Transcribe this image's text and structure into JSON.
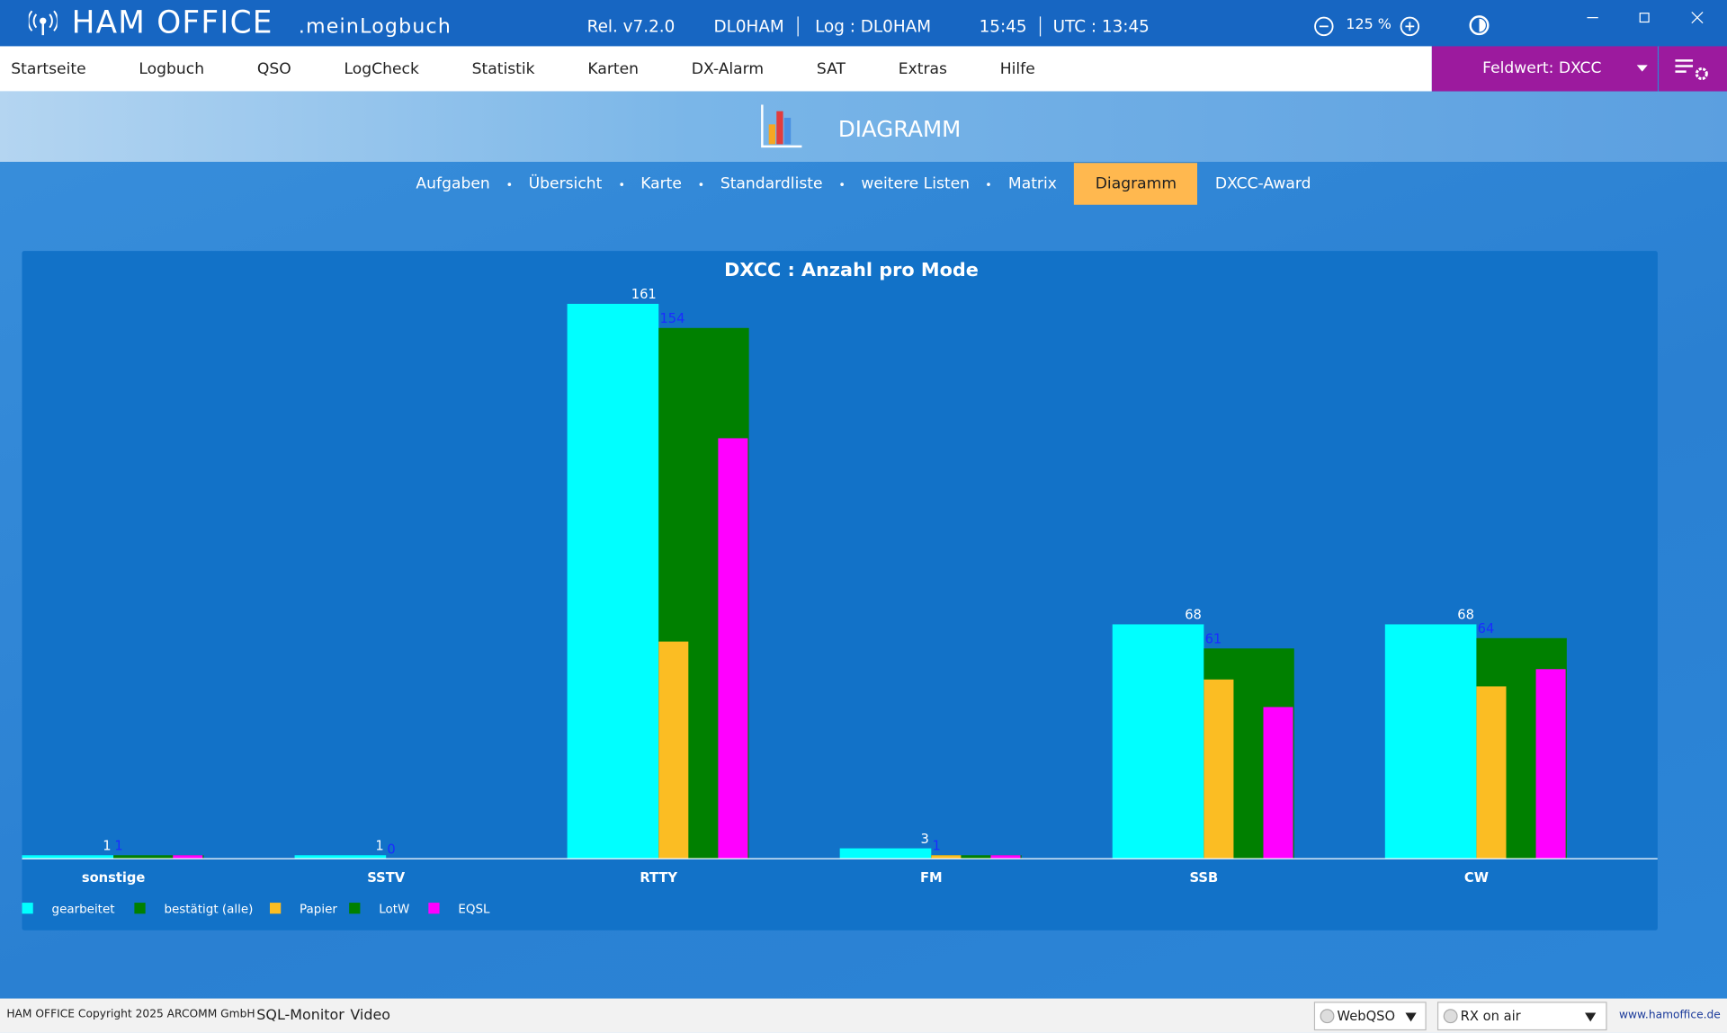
{
  "titlebar": {
    "app": "HAM OFFICE",
    "subtitle": ".meinLogbuch",
    "release": "Rel. v7.2.0",
    "station": "DL0HAM",
    "log": "Log : DL0HAM",
    "time": "15:45",
    "utc": "UTC : 13:45",
    "zoom": "125 %"
  },
  "menu": {
    "items": [
      "Startseite",
      "Logbuch",
      "QSO",
      "LogCheck",
      "Statistik",
      "Karten",
      "DX-Alarm",
      "SAT",
      "Extras",
      "Hilfe"
    ],
    "field": "Feldwert:  DXCC"
  },
  "header": {
    "title": "DIAGRAMM"
  },
  "tabs": {
    "items": [
      "Aufgaben",
      "Übersicht",
      "Karte",
      "Standardliste",
      "weitere Listen",
      "Matrix",
      "Diagramm",
      "DXCC-Award"
    ],
    "active": 6
  },
  "chart_data": {
    "type": "bar",
    "title": "DXCC : Anzahl pro Mode",
    "categories": [
      "sonstige",
      "SSTV",
      "RTTY",
      "FM",
      "SSB",
      "CW"
    ],
    "series": [
      {
        "name": "gearbeitet",
        "color": "#00ffff",
        "values": [
          1,
          1,
          161,
          3,
          68,
          68
        ],
        "label_color": "#ffffff"
      },
      {
        "name": "bestätigt (alle)",
        "color": "#008000",
        "values": [
          1,
          0,
          154,
          1,
          61,
          64
        ],
        "label_color": "#1a2cff"
      },
      {
        "name": "Papier",
        "color": "#fbbd23",
        "values": [
          0,
          0,
          63,
          1,
          52,
          50
        ]
      },
      {
        "name": "LotW",
        "color": "#008000",
        "values": [
          null,
          null,
          null,
          null,
          null,
          null
        ]
      },
      {
        "name": "EQSL",
        "color": "#ff00ff",
        "values": [
          1,
          0,
          122,
          1,
          44,
          55
        ]
      }
    ]
  },
  "footer": {
    "copyright": "HAM OFFICE Copyright 2025 ARCOMM GmbH",
    "sql": "SQL-Monitor",
    "video": "Video",
    "webqso": "WebQSO",
    "rx": "RX on air",
    "url": "www.hamoffice.de"
  }
}
